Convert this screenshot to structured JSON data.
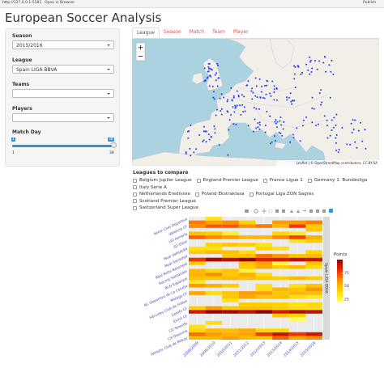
{
  "browser": {
    "url": "http://127.0.0.1:5581",
    "open": "Open in Browser",
    "publish": "Publish"
  },
  "title": "European Soccer Analysis",
  "sidebar": {
    "season": {
      "label": "Season",
      "value": "2015/2016"
    },
    "league": {
      "label": "League",
      "value": "Spain LIGA BBVA"
    },
    "teams": {
      "label": "Teams"
    },
    "players": {
      "label": "Players"
    },
    "match_day": {
      "label": "Match Day",
      "min": 1,
      "max": 38,
      "from": 1,
      "to": 38
    }
  },
  "tabs": [
    "League",
    "Season",
    "Match",
    "Team",
    "Player"
  ],
  "map": {
    "zoom_in": "+",
    "zoom_out": "−",
    "attribution": "Leaflet | © OpenStreetMap contributors, CC-BY-SA"
  },
  "compare": {
    "label": "Leagues to compare",
    "options": [
      "Belgium Jupiler League",
      "England Premier League",
      "France Ligue 1",
      "Germany 1. Bundesliga",
      "Italy Serie A",
      "Netherlands Eredivisie",
      "Poland Ekstraklasa",
      "Portugal Liga ZON Sagres",
      "Scotland Premier League",
      "Switzerland Super League"
    ]
  },
  "chart_data": {
    "type": "heatmap",
    "x": [
      "2008/2009",
      "2009/2010",
      "2010/2011",
      "2011/2012",
      "2012/2013",
      "2013/2014",
      "2014/2015",
      "2015/2016"
    ],
    "y": [
      "Athletic Club de Bilbao",
      null,
      "CA Osasuna",
      null,
      "CD Tenerife",
      null,
      "Elche CF",
      null,
      "Getafe CF",
      null,
      "Hércules Club de Fútbol",
      null,
      "Málaga CF",
      null,
      "RC Deportivo de La Coruña",
      null,
      "RCD Espanyol",
      null,
      "Racing Santander",
      null,
      "Real Betis Balompié",
      null,
      "Real Sociedad",
      null,
      "Real Valladolid",
      null,
      "SD Eibar",
      null,
      "UD Almería",
      null,
      "Valencia CF",
      null,
      "Xerez Club Deportivo"
    ],
    "values": [
      [
        48,
        50,
        58,
        49,
        45,
        70,
        55,
        62
      ],
      [
        67,
        58,
        52,
        56,
        76,
        90,
        78,
        88
      ],
      [
        40,
        49,
        47,
        54,
        39,
        39,
        null,
        null
      ],
      [
        35,
        null,
        null,
        null,
        null,
        null,
        null,
        null
      ],
      [
        null,
        36,
        null,
        null,
        null,
        null,
        null,
        null
      ],
      [
        null,
        null,
        null,
        null,
        null,
        null,
        20,
        null
      ],
      [
        null,
        null,
        null,
        null,
        null,
        45,
        41,
        null
      ],
      [
        87,
        99,
        96,
        91,
        100,
        87,
        94,
        91
      ],
      [
        42,
        58,
        44,
        47,
        47,
        42,
        37,
        36
      ],
      [
        null,
        null,
        null,
        42,
        42,
        41,
        35,
        39
      ],
      [
        null,
        null,
        35,
        null,
        null,
        null,
        null,
        null
      ],
      [
        null,
        null,
        44,
        55,
        46,
        48,
        37,
        32
      ],
      [
        55,
        37,
        46,
        58,
        57,
        45,
        50,
        48
      ],
      [
        null,
        null,
        null,
        null,
        37,
        49,
        45,
        60
      ],
      [
        58,
        52,
        43,
        null,
        35,
        null,
        35,
        45
      ],
      [
        33,
        null,
        null,
        null,
        null,
        null,
        null,
        null
      ],
      [
        47,
        44,
        49,
        46,
        44,
        42,
        49,
        43
      ],
      [
        51,
        62,
        44,
        52,
        36,
        null,
        null,
        null
      ],
      [
        49,
        40,
        46,
        27,
        null,
        null,
        null,
        null
      ],
      [
        null,
        null,
        null,
        43,
        53,
        43,
        49,
        38
      ],
      [
        42,
        null,
        null,
        47,
        56,
        25,
        null,
        45
      ],
      [
        78,
        96,
        92,
        100,
        85,
        87,
        92,
        90
      ],
      [
        null,
        null,
        45,
        47,
        66,
        59,
        46,
        48
      ],
      [
        43,
        48,
        47,
        37,
        null,
        null,
        null,
        39
      ],
      [
        36,
        36,
        null,
        null,
        40,
        36,
        null,
        null
      ],
      [
        null,
        41,
        45,
        43,
        34,
        null,
        null,
        null
      ],
      [
        null,
        null,
        null,
        null,
        null,
        null,
        35,
        43
      ],
      [
        70,
        63,
        58,
        50,
        50,
        63,
        76,
        52
      ],
      [
        46,
        43,
        30,
        null,
        null,
        40,
        32,
        null
      ],
      [
        null,
        null,
        null,
        null,
        null,
        null,
        null,
        44
      ],
      [
        62,
        71,
        71,
        61,
        65,
        49,
        77,
        44
      ],
      [
        65,
        56,
        62,
        41,
        null,
        59,
        60,
        64
      ],
      [
        null,
        34,
        null,
        null,
        null,
        null,
        null,
        null
      ]
    ],
    "facet": "Spain LIGA BBVA",
    "legend_title": "Points",
    "zlim": [
      20,
      100
    ],
    "zticks": [
      25,
      50,
      75
    ]
  }
}
